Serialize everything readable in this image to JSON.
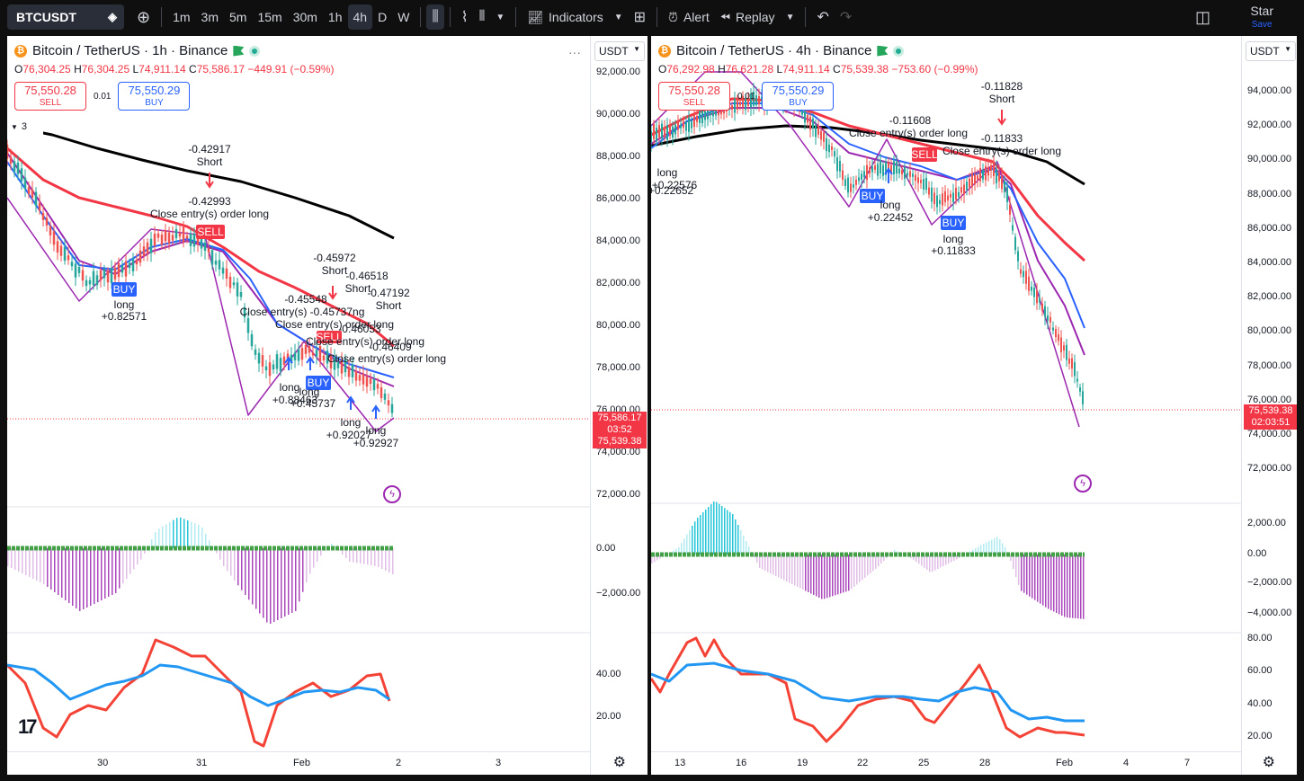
{
  "toolbar": {
    "symbol": "BTCUSDT",
    "intervals": [
      "1m",
      "3m",
      "5m",
      "15m",
      "30m",
      "1h",
      "4h",
      "D",
      "W"
    ],
    "active_interval": "4h",
    "indicators_label": "Indicators",
    "alert_label": "Alert",
    "replay_label": "Replay",
    "account_label": "Star",
    "save_label": "Save"
  },
  "left_pane": {
    "title": "Bitcoin / TetherUS · 1h · Binance",
    "ohlc": {
      "o": "76,304.25",
      "h": "76,304.25",
      "l": "74,911.14",
      "c": "75,586.17",
      "chg": "−449.91 (−0.59%)"
    },
    "sell_price": "75,550.28",
    "sell_label": "SELL",
    "buy_price": "75,550.29",
    "buy_label": "BUY",
    "spread": "0.01",
    "indicator_count": "3",
    "currency": "USDT",
    "price_axis": [
      "92,000.00",
      "90,000.00",
      "88,000.00",
      "86,000.00",
      "84,000.00",
      "82,000.00",
      "80,000.00",
      "78,000.00",
      "76,000.00",
      "74,000.00",
      "72,000.00"
    ],
    "last_price": "75,586.17",
    "countdown": "03:52",
    "bid_price": "75,539.38",
    "macd_axis": [
      "0.00",
      "−2,000.00"
    ],
    "rsi_axis": [
      "40.00",
      "20.00"
    ],
    "x_axis": [
      "30",
      "31",
      "Feb",
      "2",
      "3"
    ],
    "annotations": [
      {
        "text": "-0.42917",
        "x": 0,
        "y": 0
      },
      {
        "text": "Short"
      },
      {
        "text": "-0.42993"
      },
      {
        "text": "Close entry(s) order long"
      },
      {
        "text": "BUY"
      },
      {
        "text": "long"
      },
      {
        "text": "+0.82571"
      },
      {
        "text": "SELL"
      },
      {
        "text": "-0.45972"
      },
      {
        "text": "Short"
      },
      {
        "text": "-0.46518"
      },
      {
        "text": "Short"
      },
      {
        "text": "-0.47192"
      },
      {
        "text": "Short"
      },
      {
        "text": "-0.45548"
      },
      {
        "text": "Close entry(s) -0.45737ng"
      },
      {
        "text": "Close entry(s) order long"
      },
      {
        "text": "-0.46053"
      },
      {
        "text": "SELL"
      },
      {
        "text": "Close entry(s) order long"
      },
      {
        "text": "-0.46409"
      },
      {
        "text": "Close entry(s) order long"
      },
      {
        "text": "BUY"
      },
      {
        "text": "long"
      },
      {
        "text": "+0.88463"
      },
      {
        "text": "long"
      },
      {
        "text": "+0.45737"
      },
      {
        "text": "long"
      },
      {
        "text": "+0.92027"
      },
      {
        "text": "long"
      },
      {
        "text": "+0.92927"
      }
    ]
  },
  "right_pane": {
    "title": "Bitcoin / TetherUS · 4h · Binance",
    "ohlc": {
      "o": "76,292.98",
      "h": "76,621.28",
      "l": "74,911.14",
      "c": "75,539.38",
      "chg": "−753.60 (−0.99%)"
    },
    "sell_price": "75,550.28",
    "sell_label": "SELL",
    "buy_price": "75,550.29",
    "buy_label": "BUY",
    "spread": "0.01",
    "currency": "USDT",
    "price_axis": [
      "94,000.00",
      "92,000.00",
      "90,000.00",
      "88,000.00",
      "86,000.00",
      "84,000.00",
      "82,000.00",
      "80,000.00",
      "78,000.00",
      "76,000.00",
      "74,000.00",
      "72,000.00"
    ],
    "last_price": "75,539.38",
    "countdown": "02:03:51",
    "macd_axis": [
      "2,000.00",
      "0.00",
      "−2,000.00",
      "−4,000.00"
    ],
    "rsi_axis": [
      "80.00",
      "60.00",
      "40.00",
      "20.00"
    ],
    "x_axis": [
      "13",
      "16",
      "19",
      "22",
      "25",
      "28",
      "Feb",
      "4",
      "7"
    ],
    "annotations": [
      {
        "text": "-0.11828"
      },
      {
        "text": "Short"
      },
      {
        "text": "-0.11608"
      },
      {
        "text": "Close entry(s) order long"
      },
      {
        "text": "-0.11833"
      },
      {
        "text": "Close entry(s) order long"
      },
      {
        "text": "SELL"
      },
      {
        "text": "BUY"
      },
      {
        "text": "long"
      },
      {
        "text": "+0.22452"
      },
      {
        "text": "BUY"
      },
      {
        "text": "long"
      },
      {
        "text": "+0.11833"
      },
      {
        "text": "long"
      },
      {
        "text": "+0.22576"
      },
      {
        "text": "+0.22652"
      }
    ]
  },
  "colors": {
    "up": "#26a69a",
    "down": "#ef5350",
    "ema_red": "#f23645",
    "ema_blue": "#2962ff",
    "ema_purple": "#9c27b0",
    "sma_black": "#000000",
    "zigzag": "#9c27b0"
  }
}
